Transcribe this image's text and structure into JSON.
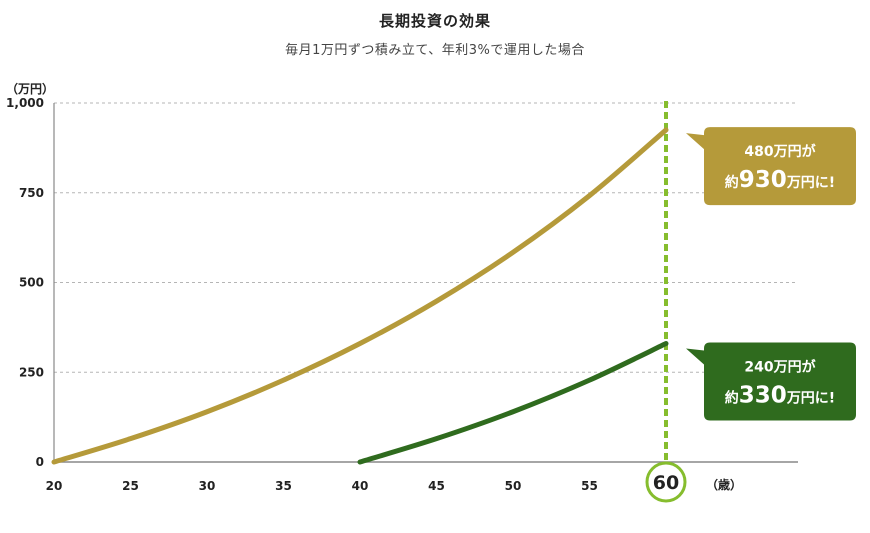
{
  "chart_data": {
    "type": "line",
    "title": "長期投資の効果",
    "subtitle": "毎月1万円ずつ積み立て、年利3%で運用した場合",
    "y_unit": "（万円）",
    "x_unit": "（歳）",
    "xlim": [
      20,
      70
    ],
    "ylim": [
      0,
      1000
    ],
    "x_ticks": [
      "20",
      "25",
      "30",
      "35",
      "40",
      "45",
      "50",
      "55",
      "60"
    ],
    "y_ticks": [
      "0",
      "250",
      "500",
      "750",
      "1,000"
    ],
    "y_tick_values": [
      0,
      250,
      500,
      750,
      1000
    ],
    "x_tick_values": [
      20,
      25,
      30,
      35,
      40,
      45,
      50,
      55,
      60
    ],
    "highlight_x": "60",
    "grid": true,
    "series": [
      {
        "color": "#b59a3a",
        "x": [
          20,
          25,
          30,
          35,
          40,
          45,
          50,
          55,
          60
        ],
        "values": [
          0,
          65,
          140,
          228,
          330,
          448,
          584,
          742,
          925
        ]
      },
      {
        "color": "#2f6b1e",
        "x": [
          40,
          45,
          50,
          55,
          60
        ],
        "values": [
          0,
          65,
          140,
          228,
          330
        ]
      }
    ],
    "annotations": [
      {
        "line1": "480万円が",
        "prefix": "約",
        "big": "930",
        "suffix": "万円に!",
        "color": "#b59a3a",
        "y": 930
      },
      {
        "line1": "240万円が",
        "prefix": "約",
        "big": "330",
        "suffix": "万円に!",
        "color": "#2f6b1e",
        "y": 330
      }
    ],
    "highlight_color": "#86bd2e"
  }
}
